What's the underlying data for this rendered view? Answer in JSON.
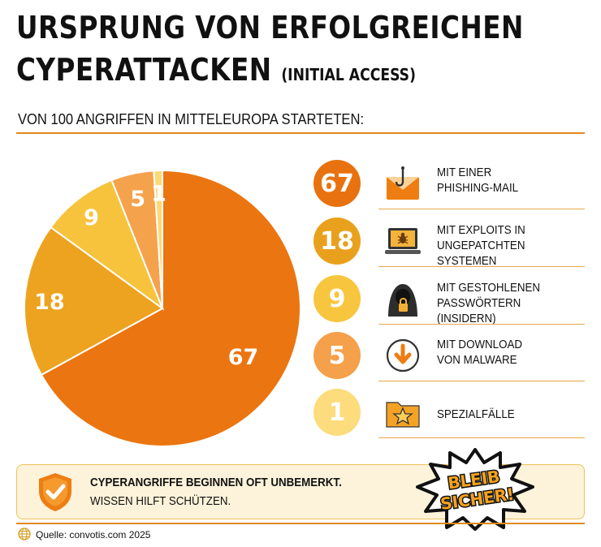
{
  "title": {
    "line1": "URSPRUNG VON ERFOLGREICHEN",
    "line2": "CYPERATTACKEN",
    "sub": "(INITIAL ACCESS)"
  },
  "intro": "VON 100 ANGRIFFEN IN MITTELEUROPA STARTETEN:",
  "chart_data": {
    "type": "pie",
    "title": "URSPRUNG VON ERFOLGREICHEN CYPERATTACKEN (INITIAL ACCESS)",
    "categories": [
      "MIT EINER PHISHING-MAIL",
      "MIT EXPLOITS IN UNGEPATCHTEN SYSTEMEN",
      "MIT GESTOHLENEN PASSWÖRTERN (INSIDERN)",
      "MIT DOWNLOAD VON MALWARE",
      "SPEZIALFÄLLE"
    ],
    "values": [
      67,
      18,
      9,
      5,
      1
    ],
    "colors": [
      "#eb7510",
      "#eda31f",
      "#f7c33d",
      "#f5a24c",
      "#fbd978"
    ]
  },
  "legend": [
    {
      "value": "67",
      "text": "MIT EINER\nPHISHING-MAIL",
      "icon": "phishing-mail-icon",
      "color": "#e8720f"
    },
    {
      "value": "18",
      "text": "MIT EXPLOITS IN\nUNGEPATCHTEN SYSTEMEN",
      "icon": "laptop-bug-icon",
      "color": "#e9a11d"
    },
    {
      "value": "9",
      "text": "MIT GESTOHLENEN\nPASSWÖRTERN (INSIDERN)",
      "icon": "hooded-hacker-icon",
      "color": "#f8c53e"
    },
    {
      "value": "5",
      "text": "MIT DOWNLOAD\nVON MALWARE",
      "icon": "download-icon",
      "color": "#f5a04a"
    },
    {
      "value": "1",
      "text": "SPEZIALFÄLLE",
      "icon": "star-folder-icon",
      "color": "#fcdc7c"
    }
  ],
  "banner": {
    "line1": "CYPERANGRIFFE BEGINNEN OFT UNBEMERKT.",
    "line2": "WISSEN HILFT SCHÜTZEN.",
    "badge_line1": "BLEIB",
    "badge_line2": "SICHER!",
    "icon": "shield-check-icon"
  },
  "footer": "Quelle: convotis.com 2025"
}
